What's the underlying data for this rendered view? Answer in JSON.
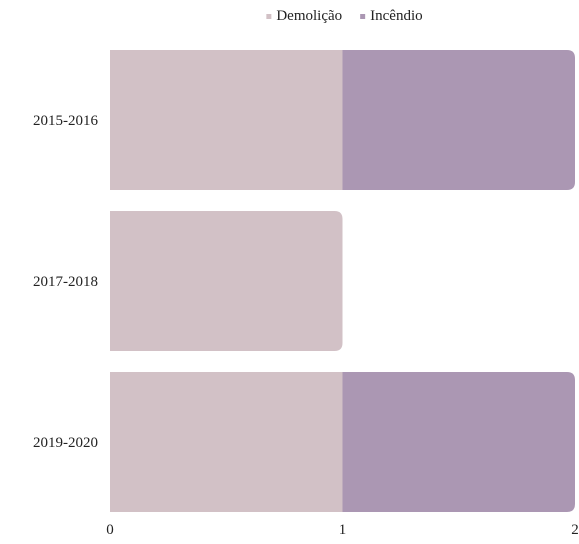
{
  "chart_data": {
    "type": "bar",
    "orientation": "horizontal",
    "stacked": true,
    "categories": [
      "2015-2016",
      "2017-2018",
      "2019-2020"
    ],
    "series": [
      {
        "name": "Demolição",
        "values": [
          1,
          1,
          1
        ],
        "color": "#d2c1c6"
      },
      {
        "name": "Incêndio",
        "values": [
          1,
          0,
          1
        ],
        "color": "#ab97b3"
      }
    ],
    "xlim": [
      0,
      2
    ],
    "x_ticks": [
      "0",
      "1",
      "2"
    ],
    "title": "",
    "xlabel": "",
    "ylabel": "",
    "legend_position": "top-center",
    "grid": false
  }
}
